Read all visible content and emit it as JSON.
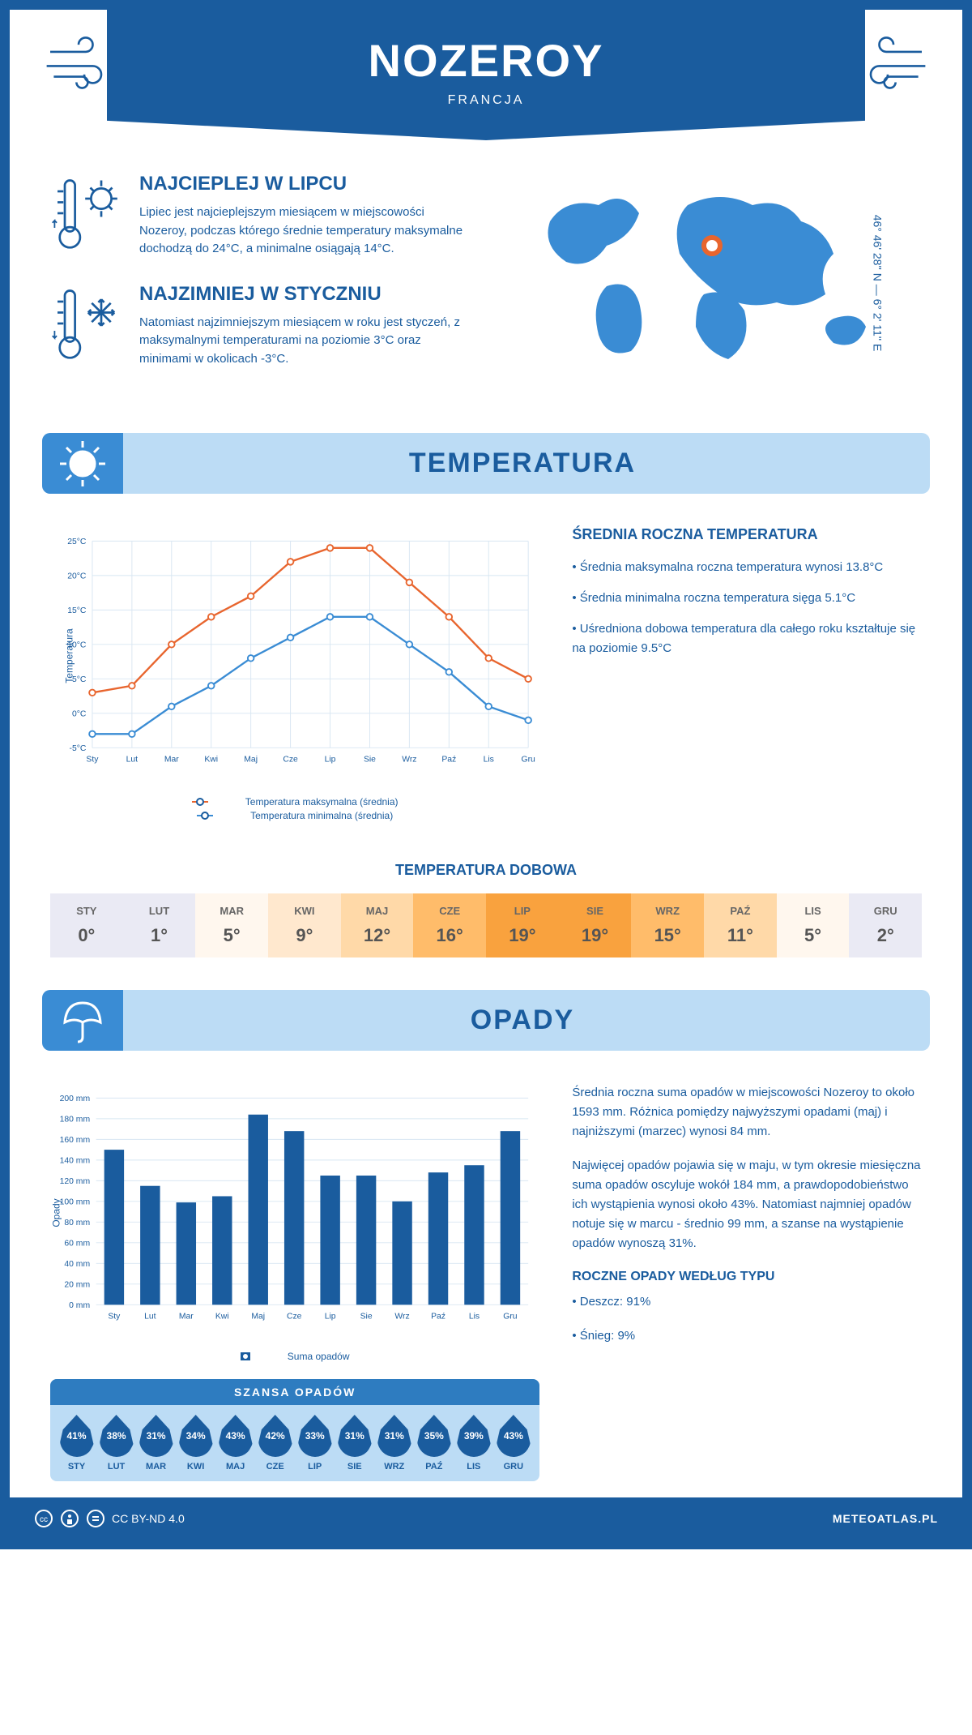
{
  "header": {
    "title": "NOZEROY",
    "country": "FRANCJA"
  },
  "coords": "46° 46' 28'' N — 6° 2' 11'' E",
  "intro": {
    "hot": {
      "title": "NAJCIEPLEJ W LIPCU",
      "text": "Lipiec jest najcieplejszym miesiącem w miejscowości Nozeroy, podczas którego średnie temperatury maksymalne dochodzą do 24°C, a minimalne osiągają 14°C."
    },
    "cold": {
      "title": "NAJZIMNIEJ W STYCZNIU",
      "text": "Natomiast najzimniejszym miesiącem w roku jest styczeń, z maksymalnymi temperaturami na poziomie 3°C oraz minimami w okolicach -3°C."
    }
  },
  "temperature": {
    "section_title": "TEMPERATURA",
    "months": [
      "Sty",
      "Lut",
      "Mar",
      "Kwi",
      "Maj",
      "Cze",
      "Lip",
      "Sie",
      "Wrz",
      "Paź",
      "Lis",
      "Gru"
    ],
    "max": [
      3,
      4,
      10,
      14,
      17,
      22,
      24,
      24,
      19,
      14,
      8,
      5
    ],
    "min": [
      -3,
      -3,
      1,
      4,
      8,
      11,
      14,
      14,
      10,
      6,
      1,
      -1
    ],
    "ylabel": "Temperatura",
    "ylim": [
      -5,
      25
    ],
    "ytick_step": 5,
    "ytick_suffix": "°C",
    "max_color": "#e8652e",
    "min_color": "#3a8cd4",
    "grid_color": "#d8e6f2",
    "legend_max": "Temperatura maksymalna (średnia)",
    "legend_min": "Temperatura minimalna (średnia)",
    "info_title": "ŚREDNIA ROCZNA TEMPERATURA",
    "info_points": [
      "• Średnia maksymalna roczna temperatura wynosi 13.8°C",
      "• Średnia minimalna roczna temperatura sięga 5.1°C",
      "• Uśredniona dobowa temperatura dla całego roku kształtuje się na poziomie 9.5°C"
    ]
  },
  "daily": {
    "title": "TEMPERATURA DOBOWA",
    "months": [
      "STY",
      "LUT",
      "MAR",
      "KWI",
      "MAJ",
      "CZE",
      "LIP",
      "SIE",
      "WRZ",
      "PAŹ",
      "LIS",
      "GRU"
    ],
    "values": [
      "0°",
      "1°",
      "5°",
      "9°",
      "12°",
      "16°",
      "19°",
      "19°",
      "15°",
      "11°",
      "5°",
      "2°"
    ],
    "bg_colors": [
      "#eaeaf4",
      "#eaeaf4",
      "#fff7ee",
      "#ffe8ce",
      "#ffd9a8",
      "#ffbc6a",
      "#f9a23e",
      "#f9a23e",
      "#ffbc6a",
      "#ffd9a8",
      "#fff7ee",
      "#eaeaf4"
    ]
  },
  "precip": {
    "section_title": "OPADY",
    "months": [
      "Sty",
      "Lut",
      "Mar",
      "Kwi",
      "Maj",
      "Cze",
      "Lip",
      "Sie",
      "Wrz",
      "Paź",
      "Lis",
      "Gru"
    ],
    "values": [
      150,
      115,
      99,
      105,
      184,
      168,
      125,
      125,
      100,
      128,
      135,
      168
    ],
    "ylabel": "Opady",
    "ylim": [
      0,
      200
    ],
    "ytick_step": 20,
    "ytick_suffix": " mm",
    "bar_color": "#1a5c9e",
    "grid_color": "#d8e6f2",
    "legend": "Suma opadów",
    "text1": "Średnia roczna suma opadów w miejscowości Nozeroy to około 1593 mm. Różnica pomiędzy najwyższymi opadami (maj) i najniższymi (marzec) wynosi 84 mm.",
    "text2": "Najwięcej opadów pojawia się w maju, w tym okresie miesięczna suma opadów oscyluje wokół 184 mm, a prawdopodobieństwo ich wystąpienia wynosi około 43%. Natomiast najmniej opadów notuje się w marcu - średnio 99 mm, a szanse na wystąpienie opadów wynoszą 31%.",
    "type_title": "ROCZNE OPADY WEDŁUG TYPU",
    "type_points": [
      "• Deszcz: 91%",
      "• Śnieg: 9%"
    ]
  },
  "chance": {
    "title": "SZANSA OPADÓW",
    "months": [
      "STY",
      "LUT",
      "MAR",
      "KWI",
      "MAJ",
      "CZE",
      "LIP",
      "SIE",
      "WRZ",
      "PAŹ",
      "LIS",
      "GRU"
    ],
    "values": [
      "41%",
      "38%",
      "31%",
      "34%",
      "43%",
      "42%",
      "33%",
      "31%",
      "31%",
      "35%",
      "39%",
      "43%"
    ]
  },
  "footer": {
    "license": "CC BY-ND 4.0",
    "site": "METEOATLAS.PL"
  }
}
